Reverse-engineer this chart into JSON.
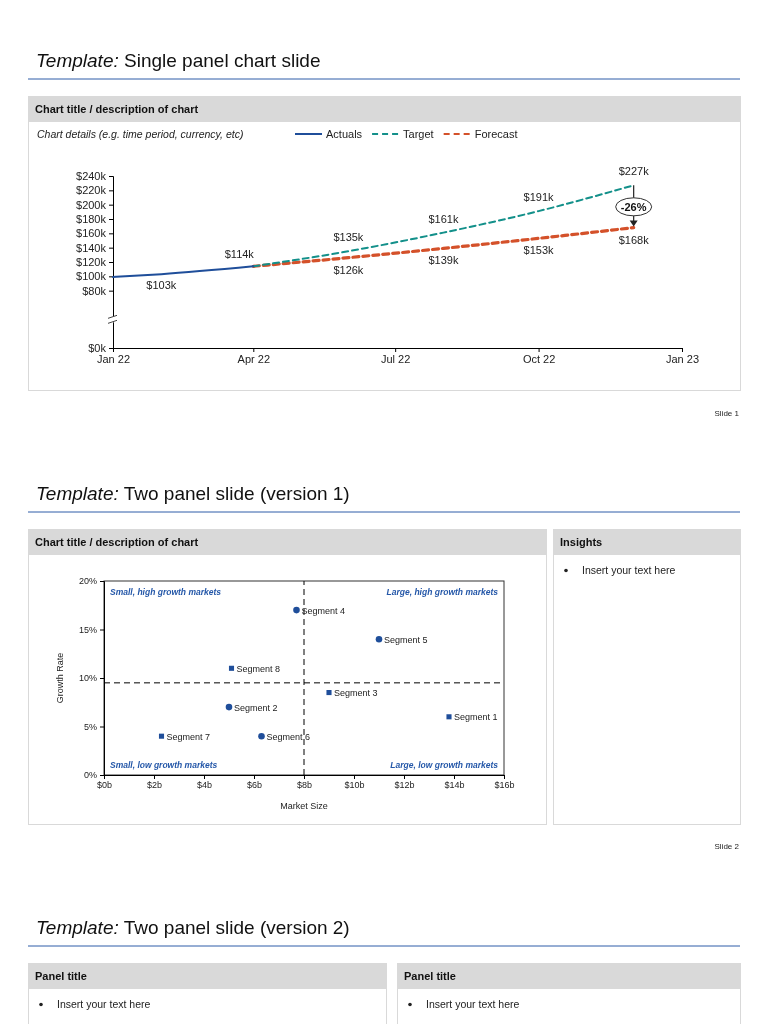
{
  "chart_data": [
    {
      "type": "line",
      "title": "Chart title / description of chart",
      "subtitle": "Chart details (e.g. time period, currency, etc)",
      "legend": "top",
      "xlim": [
        "2022-01-01",
        "2023-01-01"
      ],
      "xticks": [
        {
          "value": "2022-01-01",
          "label": "Jan 22"
        },
        {
          "value": "2022-04-01",
          "label": "Apr 22"
        },
        {
          "value": "2022-07-01",
          "label": "Jul 22"
        },
        {
          "value": "2022-10-01",
          "label": "Oct 22"
        },
        {
          "value": "2023-01-01",
          "label": "Jan 23"
        }
      ],
      "ylim": [
        0,
        240
      ],
      "yticks": [
        {
          "value": 0,
          "label": "$0k"
        },
        {
          "value": 80,
          "label": "$80k"
        },
        {
          "value": 100,
          "label": "$100k"
        },
        {
          "value": 120,
          "label": "$120k"
        },
        {
          "value": 140,
          "label": "$140k"
        },
        {
          "value": 160,
          "label": "$160k"
        },
        {
          "value": 180,
          "label": "$180k"
        },
        {
          "value": 200,
          "label": "$200k"
        },
        {
          "value": 220,
          "label": "$220k"
        },
        {
          "value": 240,
          "label": "$240k"
        }
      ],
      "series": [
        {
          "name": "Actuals",
          "color": "#1f4e9a",
          "line_style": "solid",
          "x": [
            "2022-01-01",
            "2022-02-01",
            "2022-04-01"
          ],
          "values": [
            99,
            103,
            114
          ],
          "value_labels": [
            null,
            "$103k",
            "$114k"
          ]
        },
        {
          "name": "Target",
          "color": "#13908a",
          "line_style": "dashed",
          "x": [
            "2022-04-01",
            "2022-06-01",
            "2022-08-01",
            "2022-10-01",
            "2022-12-01"
          ],
          "values": [
            114,
            135,
            161,
            191,
            227
          ],
          "value_labels": [
            null,
            "$135k",
            "$161k",
            "$191k",
            "$227k"
          ]
        },
        {
          "name": "Forecast",
          "color": "#d4512a",
          "line_style": "dashed",
          "x": [
            "2022-04-01",
            "2022-06-01",
            "2022-08-01",
            "2022-10-01",
            "2022-12-01"
          ],
          "values": [
            114,
            126,
            139,
            153,
            168
          ],
          "value_labels": [
            null,
            "$126k",
            "$139k",
            "$153k",
            "$168k"
          ]
        }
      ],
      "annotations": [
        "Template: Single panel chart slide",
        "Slide 1",
        {
          "text": "-26%",
          "x": "2022-12-01",
          "y": 197
        }
      ]
    },
    {
      "type": "scatter",
      "title": "Chart title / description of chart",
      "xlabel": "Market Size",
      "ylabel": "Growth Rate",
      "xlim": [
        0,
        16
      ],
      "xticks": [
        {
          "value": 0,
          "label": "$0b"
        },
        {
          "value": 2,
          "label": "$2b"
        },
        {
          "value": 4,
          "label": "$4b"
        },
        {
          "value": 6,
          "label": "$6b"
        },
        {
          "value": 8,
          "label": "$8b"
        },
        {
          "value": 10,
          "label": "$10b"
        },
        {
          "value": 12,
          "label": "$12b"
        },
        {
          "value": 14,
          "label": "$14b"
        },
        {
          "value": 16,
          "label": "$16b"
        }
      ],
      "ylim": [
        0,
        20
      ],
      "yticks": [
        {
          "value": 0,
          "label": "0%"
        },
        {
          "value": 5,
          "label": "5%"
        },
        {
          "value": 10,
          "label": "10%"
        },
        {
          "value": 15,
          "label": "15%"
        },
        {
          "value": 20,
          "label": "20%"
        }
      ],
      "series": [
        {
          "color": "#1f4e9a",
          "marker": "square",
          "x": [
            13.8,
            9.0,
            2.3,
            5.1
          ],
          "values": [
            6,
            8.5,
            4,
            11
          ],
          "value_labels": [
            "Segment 1",
            "Segment 3",
            "Segment 7",
            "Segment 8"
          ]
        },
        {
          "color": "#1f4e9a",
          "marker": "circle",
          "x": [
            5.0,
            7.7,
            11.0,
            6.3
          ],
          "values": [
            7,
            17,
            14,
            4
          ],
          "value_labels": [
            "Segment 2",
            "Segment 4",
            "Segment 5",
            "Segment 6"
          ]
        }
      ],
      "ref_lines": [
        {
          "axis": "x",
          "value": 8,
          "color": "#000000",
          "line_style": "dashed"
        },
        {
          "axis": "y",
          "value": 9.5,
          "color": "#000000",
          "line_style": "dashed"
        }
      ],
      "annotations": [
        "Template: Two panel slide (version 1)",
        "Slide 2",
        "Small, high growth markets",
        "Large, high growth markets",
        "Small, low growth markets",
        "Large, low growth markets"
      ]
    },
    {
      "type": "other",
      "title": "Insights",
      "annotations": [
        "Insert your text here"
      ]
    },
    {
      "type": "other",
      "title": "Panel title",
      "annotations": [
        "Template: Two panel slide (version 2)",
        "Insert your text here"
      ]
    },
    {
      "type": "other",
      "title": "Panel title",
      "annotations": [
        "Insert your text here"
      ]
    }
  ]
}
